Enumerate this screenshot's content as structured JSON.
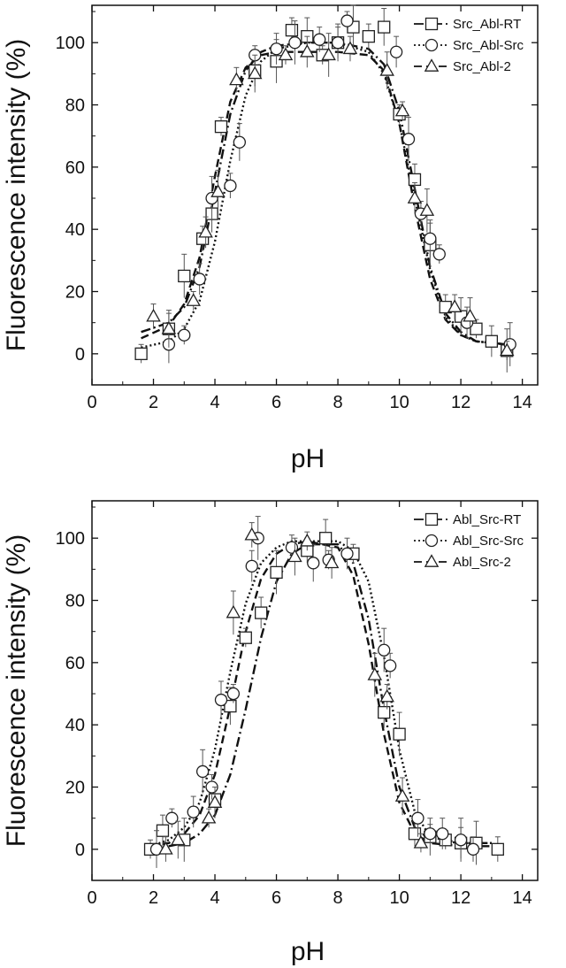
{
  "chart_data": [
    {
      "type": "scatter",
      "xlabel": "pH",
      "ylabel": "Fluorescence intensity (%)",
      "xlim": [
        0,
        14.5
      ],
      "ylim": [
        -10,
        112
      ],
      "xticks": [
        0,
        2,
        4,
        6,
        8,
        10,
        12,
        14
      ],
      "yticks": [
        0,
        20,
        40,
        60,
        80,
        100
      ],
      "grid": false,
      "legend_position": "top-right",
      "series": [
        {
          "name": "Src_Abl-RT",
          "marker": "square",
          "line": "dashdot",
          "x": [
            1.6,
            2.5,
            3.0,
            3.6,
            3.9,
            4.2,
            5.3,
            6.0,
            6.5,
            7.0,
            7.5,
            8.0,
            8.5,
            9.0,
            9.5,
            10.0,
            10.5,
            11.0,
            11.5,
            12.0,
            12.5,
            13.0,
            13.5
          ],
          "y": [
            0,
            8,
            25,
            37,
            45,
            73,
            91,
            94,
            104,
            102,
            96,
            100,
            105,
            102,
            105,
            77,
            56,
            35,
            15,
            12,
            8,
            4,
            1
          ],
          "fit_x": [
            1.6,
            2.5,
            3.0,
            3.5,
            4.0,
            4.5,
            5.0,
            5.5,
            6.0,
            7.0,
            8.0,
            9.0,
            9.5,
            10.0,
            10.5,
            11.0,
            11.5,
            12.0,
            12.5,
            13.5
          ],
          "fit_y": [
            7,
            10,
            15,
            28,
            52,
            77,
            91,
            97,
            99,
            100,
            100,
            98,
            93,
            78,
            53,
            28,
            13,
            7,
            4,
            3
          ]
        },
        {
          "name": "Src_Abl-Src",
          "marker": "circle",
          "line": "dotted",
          "x": [
            2.5,
            3.0,
            3.5,
            3.9,
            4.5,
            4.8,
            5.3,
            6.0,
            6.6,
            7.4,
            8.0,
            8.3,
            9.9,
            10.3,
            10.7,
            11.0,
            11.3,
            12.2,
            13.6
          ],
          "y": [
            3,
            6,
            24,
            50,
            54,
            68,
            96,
            98,
            100,
            101,
            100,
            107,
            97,
            69,
            45,
            37,
            32,
            10,
            3
          ],
          "fit_x": [
            1.6,
            2.5,
            3.0,
            3.5,
            4.0,
            4.5,
            5.0,
            5.5,
            6.0,
            7.0,
            8.0,
            9.0,
            9.5,
            10.0,
            10.5,
            11.0,
            11.5,
            12.0,
            12.5,
            13.5
          ],
          "fit_y": [
            2,
            4,
            8,
            17,
            36,
            62,
            83,
            94,
            98,
            100,
            100,
            97,
            90,
            74,
            50,
            27,
            12,
            6,
            4,
            3
          ]
        },
        {
          "name": "Src_Abl-2",
          "marker": "triangle",
          "line": "dashed",
          "x": [
            2.0,
            2.5,
            3.3,
            3.7,
            4.1,
            4.7,
            5.3,
            6.3,
            7.0,
            7.7,
            8.4,
            9.6,
            10.1,
            10.5,
            10.9,
            11.8,
            12.3,
            13.5
          ],
          "y": [
            12,
            8,
            17,
            39,
            52,
            88,
            90,
            96,
            97,
            96,
            98,
            91,
            78,
            50,
            46,
            15,
            12,
            1
          ],
          "fit_x": [
            1.6,
            2.5,
            3.0,
            3.5,
            4.0,
            4.5,
            5.0,
            5.5,
            6.0,
            7.0,
            8.0,
            9.0,
            9.5,
            10.0,
            10.5,
            11.0,
            11.5,
            12.0,
            12.5,
            13.5
          ],
          "fit_y": [
            5,
            9,
            16,
            31,
            57,
            81,
            92,
            96,
            97,
            97,
            97,
            96,
            91,
            74,
            47,
            24,
            11,
            6,
            4,
            3
          ]
        }
      ]
    },
    {
      "type": "scatter",
      "xlabel": "pH",
      "ylabel": "Fluorescence intensity (%)",
      "xlim": [
        0,
        14.5
      ],
      "ylim": [
        -10,
        112
      ],
      "xticks": [
        0,
        2,
        4,
        6,
        8,
        10,
        12,
        14
      ],
      "yticks": [
        0,
        20,
        40,
        60,
        80,
        100
      ],
      "grid": false,
      "legend_position": "top-right",
      "series": [
        {
          "name": "Abl_Src-RT",
          "marker": "square",
          "line": "dashdot",
          "x": [
            1.9,
            2.3,
            3.0,
            4.0,
            4.5,
            5.0,
            5.5,
            6.0,
            7.0,
            7.6,
            8.5,
            9.5,
            10.0,
            10.5,
            11.0,
            11.5,
            12.0,
            12.5,
            13.2
          ],
          "y": [
            0,
            6,
            3,
            16,
            46,
            68,
            76,
            89,
            96,
            100,
            95,
            44,
            37,
            5,
            4,
            3,
            2,
            2,
            0
          ],
          "fit_x": [
            1.9,
            2.5,
            3.0,
            3.5,
            4.0,
            4.5,
            5.0,
            5.5,
            6.0,
            6.5,
            7.0,
            8.0,
            8.5,
            9.0,
            9.5,
            10.0,
            10.5,
            11.0,
            12.0,
            13.0
          ],
          "fit_y": [
            0,
            1,
            2,
            5,
            11,
            24,
            45,
            68,
            86,
            95,
            98,
            98,
            92,
            74,
            45,
            20,
            7,
            3,
            2,
            2
          ]
        },
        {
          "name": "Abl_Src-Src",
          "marker": "circle",
          "line": "dotted",
          "x": [
            2.1,
            2.6,
            3.3,
            3.6,
            3.9,
            4.2,
            4.6,
            5.2,
            5.4,
            6.5,
            7.2,
            7.7,
            8.3,
            9.5,
            9.7,
            10.6,
            11.0,
            11.4,
            12.0,
            12.4
          ],
          "y": [
            0,
            10,
            12,
            25,
            20,
            48,
            50,
            91,
            100,
            97,
            92,
            93,
            95,
            64,
            59,
            10,
            5,
            5,
            3,
            0
          ],
          "fit_x": [
            1.9,
            2.5,
            3.0,
            3.5,
            4.0,
            4.5,
            5.0,
            5.5,
            6.0,
            6.5,
            7.0,
            8.0,
            8.5,
            9.0,
            9.5,
            10.0,
            10.5,
            11.0,
            12.0,
            13.0
          ],
          "fit_y": [
            1,
            3,
            7,
            15,
            32,
            57,
            79,
            92,
            97,
            99,
            99,
            99,
            96,
            86,
            62,
            32,
            12,
            4,
            2,
            2
          ]
        },
        {
          "name": "Abl_Src-2",
          "marker": "triangle",
          "line": "dashed",
          "x": [
            2.4,
            2.8,
            3.8,
            4.0,
            4.6,
            5.2,
            6.6,
            7.0,
            7.8,
            9.2,
            9.6,
            10.1,
            10.7
          ],
          "y": [
            0,
            3,
            10,
            15,
            76,
            101,
            94,
            99,
            92,
            56,
            49,
            17,
            2
          ],
          "fit_x": [
            1.9,
            2.5,
            3.0,
            3.5,
            4.0,
            4.5,
            5.0,
            5.5,
            6.0,
            6.5,
            7.0,
            8.0,
            8.5,
            9.0,
            9.5,
            10.0,
            10.5,
            11.0,
            12.0,
            13.0
          ],
          "fit_y": [
            1,
            2,
            5,
            11,
            24,
            46,
            70,
            87,
            95,
            98,
            99,
            97,
            88,
            66,
            37,
            15,
            5,
            2,
            1,
            1
          ]
        }
      ]
    }
  ]
}
